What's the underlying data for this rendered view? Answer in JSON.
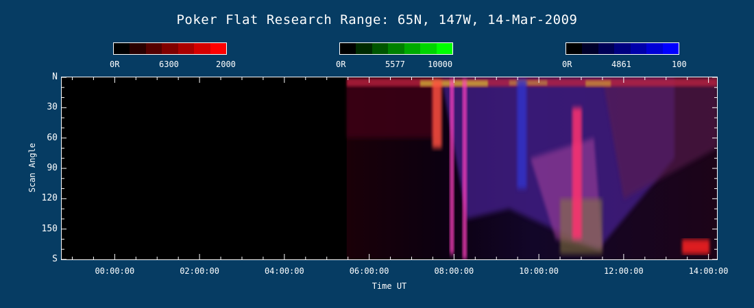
{
  "title": "Poker Flat Research Range: 65N, 147W, 14-Mar-2009",
  "colorbars": [
    {
      "label_min": "0R",
      "label_mid": "6300",
      "label_max": "2000",
      "colors": [
        "#000000",
        "#2a0000",
        "#550000",
        "#800000",
        "#aa0000",
        "#d50000",
        "#ff0000"
      ]
    },
    {
      "label_min": "0R",
      "label_mid": "5577",
      "label_max": "10000",
      "colors": [
        "#000000",
        "#002a00",
        "#005500",
        "#008000",
        "#00aa00",
        "#00d500",
        "#00ff00"
      ]
    },
    {
      "label_min": "0R",
      "label_mid": "4861",
      "label_max": "100",
      "colors": [
        "#000000",
        "#00002a",
        "#000055",
        "#000080",
        "#0000aa",
        "#0000d5",
        "#0000ff"
      ]
    }
  ],
  "chart_data": {
    "type": "heatmap",
    "title": "Poker Flat Research Range: 65N, 147W, 14-Mar-2009",
    "xlabel": "Time UT",
    "ylabel": "Scan Angle",
    "xlim_hours": [
      -1.25,
      14.2
    ],
    "ylim_deg": [
      0,
      180
    ],
    "x_ticks": [
      "00:00:00",
      "02:00:00",
      "04:00:00",
      "06:00:00",
      "08:00:00",
      "10:00:00",
      "12:00:00",
      "14:00:00"
    ],
    "y_ticks": [
      "N",
      "30",
      "60",
      "90",
      "120",
      "150",
      "S"
    ],
    "data_start_hour": 5.47,
    "emission_channels": [
      {
        "wavelength": "6300",
        "color": "red"
      },
      {
        "wavelength": "5577",
        "color": "green"
      },
      {
        "wavelength": "4861",
        "color": "blue"
      }
    ],
    "features": [
      {
        "hour": 7.6,
        "scan_angle_from": 2,
        "scan_angle_to": 70,
        "dominant": "red/yellow"
      },
      {
        "hour": 7.95,
        "scan_angle_from": 2,
        "scan_angle_to": 175,
        "dominant": "magenta"
      },
      {
        "hour": 8.25,
        "scan_angle_from": 2,
        "scan_angle_to": 180,
        "dominant": "magenta"
      },
      {
        "hour": 9.6,
        "scan_angle_from": 2,
        "scan_angle_to": 110,
        "dominant": "blue"
      },
      {
        "hour": 10.9,
        "scan_angle_from": 30,
        "scan_angle_to": 160,
        "dominant": "red/purple"
      },
      {
        "hour": 13.7,
        "scan_angle_from": 160,
        "scan_angle_to": 175,
        "dominant": "red"
      }
    ]
  }
}
